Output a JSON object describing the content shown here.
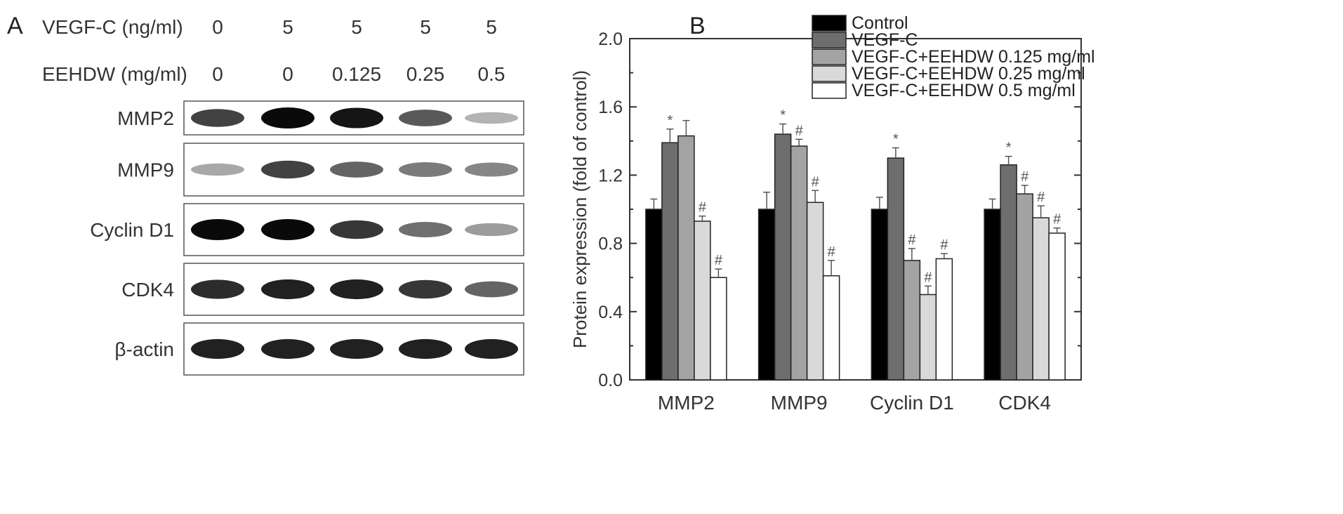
{
  "panel_a": {
    "letter": "A",
    "vegf_label": "VEGF-C (ng/ml)",
    "vegf_values": [
      "0",
      "5",
      "5",
      "5",
      "5"
    ],
    "eehdw_label": "EEHDW (mg/ml)",
    "eehdw_values": [
      "0",
      "0",
      "0.125",
      "0.25",
      "0.5"
    ],
    "blots": [
      {
        "name": "MMP2",
        "intensities": [
          0.75,
          1.0,
          0.95,
          0.65,
          0.25
        ]
      },
      {
        "name": "MMP9",
        "intensities": [
          0.3,
          0.75,
          0.6,
          0.5,
          0.45
        ]
      },
      {
        "name": "Cyclin D1",
        "intensities": [
          1.0,
          1.0,
          0.8,
          0.55,
          0.35
        ]
      },
      {
        "name": "CDK4",
        "intensities": [
          0.85,
          0.9,
          0.9,
          0.8,
          0.6
        ]
      },
      {
        "name": "β-actin",
        "intensities": [
          0.9,
          0.9,
          0.9,
          0.9,
          0.9
        ]
      }
    ]
  },
  "chart_data": {
    "type": "bar",
    "panel_letter": "B",
    "categories": [
      "MMP2",
      "MMP9",
      "Cyclin D1",
      "CDK4"
    ],
    "ylabel": "Protein expression (fold of control)",
    "xlabel": "",
    "ylim": [
      0.0,
      2.0
    ],
    "yticks": [
      "0.0",
      "0.4",
      "0.8",
      "1.2",
      "1.6",
      "2.0"
    ],
    "legend_position": "top-right",
    "series": [
      {
        "name": "Control",
        "color": "#000000",
        "values": [
          1.0,
          1.0,
          1.0,
          1.0
        ],
        "errors": [
          0.06,
          0.1,
          0.07,
          0.06
        ],
        "marks": [
          "",
          "",
          "",
          ""
        ]
      },
      {
        "name": "VEGF-C",
        "color": "#6e6e6e",
        "values": [
          1.39,
          1.44,
          1.3,
          1.26
        ],
        "errors": [
          0.08,
          0.06,
          0.06,
          0.05
        ],
        "marks": [
          "*",
          "*",
          "*",
          "*"
        ]
      },
      {
        "name": "VEGF-C+EEHDW 0.125 mg/ml",
        "color": "#a3a3a3",
        "values": [
          1.43,
          1.37,
          0.7,
          1.09
        ],
        "errors": [
          0.09,
          0.04,
          0.07,
          0.05
        ],
        "marks": [
          "",
          "#",
          "#",
          "#"
        ]
      },
      {
        "name": "VEGF-C+EEHDW 0.25 mg/ml",
        "color": "#d9d9d9",
        "values": [
          0.93,
          1.04,
          0.5,
          0.95
        ],
        "errors": [
          0.03,
          0.07,
          0.05,
          0.07
        ],
        "marks": [
          "#",
          "#",
          "#",
          "#"
        ]
      },
      {
        "name": "VEGF-C+EEHDW 0.5 mg/ml",
        "color": "#ffffff",
        "values": [
          0.6,
          0.61,
          0.71,
          0.86
        ],
        "errors": [
          0.05,
          0.09,
          0.03,
          0.03
        ],
        "marks": [
          "#",
          "#",
          "#",
          "#"
        ]
      }
    ]
  }
}
